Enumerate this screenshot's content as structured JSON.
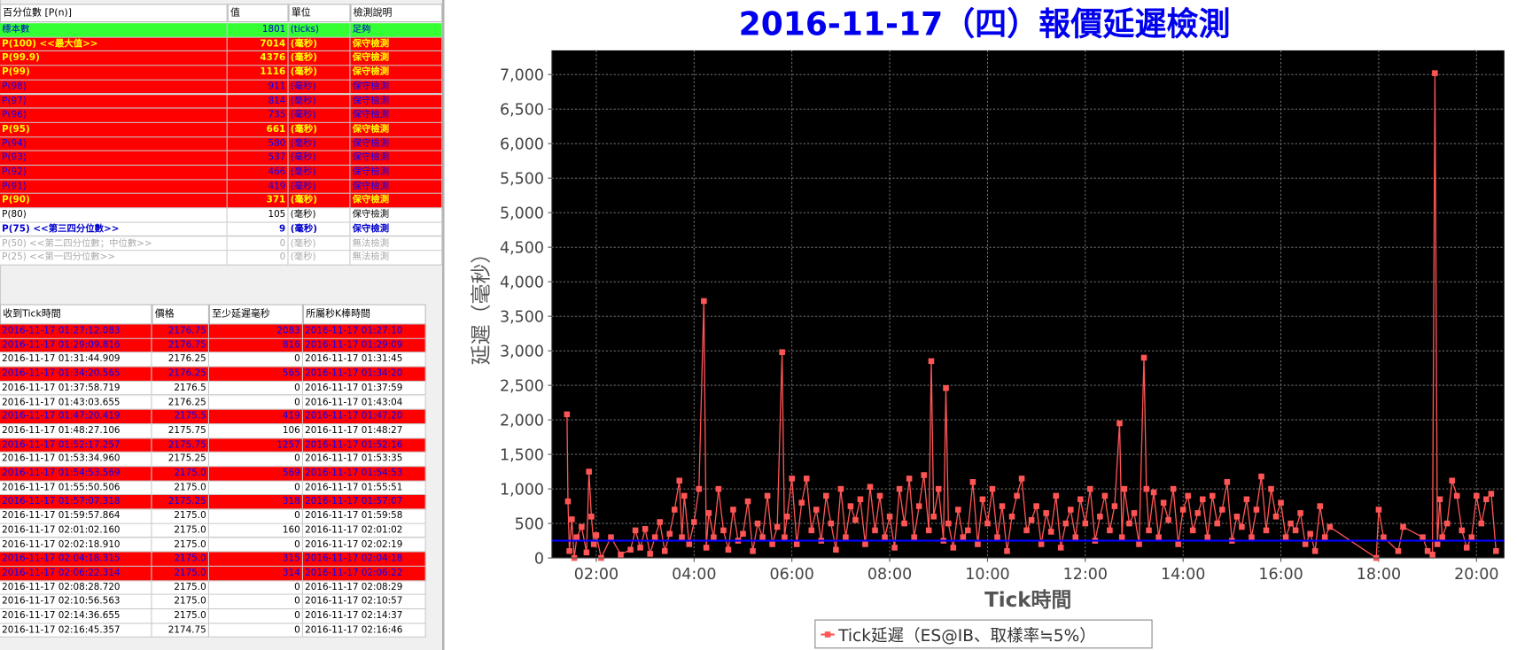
{
  "top_table": {
    "columns": [
      "百分位數 [P(n)]",
      "值",
      "單位",
      "檢測說明"
    ],
    "rows": [
      {
        "cells": [
          "標本數",
          "1801",
          "(ticks)",
          "足夠"
        ],
        "bg": "#33ff33",
        "fg": "#0000cc",
        "bold": false
      },
      {
        "cells": [
          "P(100)  <<最大值>>",
          "7014",
          "(毫秒)",
          "保守檢測"
        ],
        "bg": "#ff0000",
        "fg": "#ffff00",
        "bold": true
      },
      {
        "cells": [
          "P(99.9)",
          "4376",
          "(毫秒)",
          "保守檢測"
        ],
        "bg": "#ff0000",
        "fg": "#ffff00",
        "bold": true
      },
      {
        "cells": [
          "P(99)",
          "1116",
          "(毫秒)",
          "保守檢測"
        ],
        "bg": "#ff0000",
        "fg": "#ffff00",
        "bold": true
      },
      {
        "cells": [
          "P(98)",
          "911",
          "(毫秒)",
          "保守檢測"
        ],
        "bg": "#ff0000",
        "fg": "#0000ff",
        "bold": false
      },
      {
        "cells": [
          "P(97)",
          "814",
          "(毫秒)",
          "保守檢測"
        ],
        "bg": "#ff0000",
        "fg": "#0000ff",
        "bold": false
      },
      {
        "cells": [
          "P(96)",
          "735",
          "(毫秒)",
          "保守檢測"
        ],
        "bg": "#ff0000",
        "fg": "#0000ff",
        "bold": false
      },
      {
        "cells": [
          "P(95)",
          "661",
          "(毫秒)",
          "保守檢測"
        ],
        "bg": "#ff0000",
        "fg": "#ffff00",
        "bold": true
      },
      {
        "cells": [
          "P(94)",
          "580",
          "(毫秒)",
          "保守檢測"
        ],
        "bg": "#ff0000",
        "fg": "#0000ff",
        "bold": false
      },
      {
        "cells": [
          "P(93)",
          "537",
          "(毫秒)",
          "保守檢測"
        ],
        "bg": "#ff0000",
        "fg": "#0000ff",
        "bold": false
      },
      {
        "cells": [
          "P(92)",
          "466",
          "(毫秒)",
          "保守檢測"
        ],
        "bg": "#ff0000",
        "fg": "#0000ff",
        "bold": false
      },
      {
        "cells": [
          "P(91)",
          "419",
          "(毫秒)",
          "保守檢測"
        ],
        "bg": "#ff0000",
        "fg": "#0000ff",
        "bold": false
      },
      {
        "cells": [
          "P(90)",
          "371",
          "(毫秒)",
          "保守檢測"
        ],
        "bg": "#ff0000",
        "fg": "#ffff00",
        "bold": true
      },
      {
        "cells": [
          "P(80)",
          "105",
          "(毫秒)",
          "保守檢測"
        ],
        "bg": "#ffffff",
        "fg": "#000000",
        "bold": false
      },
      {
        "cells": [
          "P(75)  <<第三四分位數>>",
          "9",
          "(毫秒)",
          "保守檢測"
        ],
        "bg": "#ffffff",
        "fg": "#0000cc",
        "bold": true
      },
      {
        "cells": [
          "P(50)  <<第二四分位數；中位數>>",
          "0",
          "(毫秒)",
          "無法檢測"
        ],
        "bg": "#ffffff",
        "fg": "#aaaaaa",
        "bold": false
      },
      {
        "cells": [
          "P(25)  <<第一四分位數>>",
          "0",
          "(毫秒)",
          "無法檢測"
        ],
        "bg": "#ffffff",
        "fg": "#aaaaaa",
        "bold": false
      }
    ]
  },
  "bottom_table": {
    "columns": [
      "收到Tick時間",
      "價格",
      "至少延遲毫秒",
      "所屬秒K棒時間"
    ],
    "rows": [
      {
        "cells": [
          "2016-11-17 01:27:12.083",
          "2176.75",
          "2083",
          "2016-11-17 01:27:10"
        ],
        "bg": "#ff0000",
        "fg": "#0000ff"
      },
      {
        "cells": [
          "2016-11-17 01:29:09.816",
          "2176.75",
          "816",
          "2016-11-17 01:29:09"
        ],
        "bg": "#ff0000",
        "fg": "#0000ff"
      },
      {
        "cells": [
          "2016-11-17 01:31:44.909",
          "2176.25",
          "0",
          "2016-11-17 01:31:45"
        ],
        "bg": "#ffffff",
        "fg": "#000000"
      },
      {
        "cells": [
          "2016-11-17 01:34:20.565",
          "2176.25",
          "565",
          "2016-11-17 01:34:20"
        ],
        "bg": "#ff0000",
        "fg": "#0000ff"
      },
      {
        "cells": [
          "2016-11-17 01:37:58.719",
          "2176.5",
          "0",
          "2016-11-17 01:37:59"
        ],
        "bg": "#ffffff",
        "fg": "#000000"
      },
      {
        "cells": [
          "2016-11-17 01:43:03.655",
          "2176.25",
          "0",
          "2016-11-17 01:43:04"
        ],
        "bg": "#ffffff",
        "fg": "#000000"
      },
      {
        "cells": [
          "2016-11-17 01:47:20.419",
          "2175.5",
          "419",
          "2016-11-17 01:47:20"
        ],
        "bg": "#ff0000",
        "fg": "#0000ff"
      },
      {
        "cells": [
          "2016-11-17 01:48:27.106",
          "2175.75",
          "106",
          "2016-11-17 01:48:27"
        ],
        "bg": "#ffffff",
        "fg": "#000000"
      },
      {
        "cells": [
          "2016-11-17 01:52:17.257",
          "2175.75",
          "1257",
          "2016-11-17 01:52:16"
        ],
        "bg": "#ff0000",
        "fg": "#0000ff"
      },
      {
        "cells": [
          "2016-11-17 01:53:34.960",
          "2175.25",
          "0",
          "2016-11-17 01:53:35"
        ],
        "bg": "#ffffff",
        "fg": "#000000"
      },
      {
        "cells": [
          "2016-11-17 01:54:53.569",
          "2175.0",
          "569",
          "2016-11-17 01:54:53"
        ],
        "bg": "#ff0000",
        "fg": "#0000ff"
      },
      {
        "cells": [
          "2016-11-17 01:55:50.506",
          "2175.0",
          "0",
          "2016-11-17 01:55:51"
        ],
        "bg": "#ffffff",
        "fg": "#000000"
      },
      {
        "cells": [
          "2016-11-17 01:57:07.318",
          "2175.25",
          "318",
          "2016-11-17 01:57:07"
        ],
        "bg": "#ff0000",
        "fg": "#0000ff"
      },
      {
        "cells": [
          "2016-11-17 01:59:57.864",
          "2175.0",
          "0",
          "2016-11-17 01:59:58"
        ],
        "bg": "#ffffff",
        "fg": "#000000"
      },
      {
        "cells": [
          "2016-11-17 02:01:02.160",
          "2175.0",
          "160",
          "2016-11-17 02:01:02"
        ],
        "bg": "#ffffff",
        "fg": "#000000"
      },
      {
        "cells": [
          "2016-11-17 02:02:18.910",
          "2175.0",
          "0",
          "2016-11-17 02:02:19"
        ],
        "bg": "#ffffff",
        "fg": "#000000"
      },
      {
        "cells": [
          "2016-11-17 02:04:18.315",
          "2175.0",
          "315",
          "2016-11-17 02:04:18"
        ],
        "bg": "#ff0000",
        "fg": "#0000ff"
      },
      {
        "cells": [
          "2016-11-17 02:06:22.314",
          "2175.0",
          "314",
          "2016-11-17 02:06:22"
        ],
        "bg": "#ff0000",
        "fg": "#0000ff"
      },
      {
        "cells": [
          "2016-11-17 02:08:28.720",
          "2175.0",
          "0",
          "2016-11-17 02:08:29"
        ],
        "bg": "#ffffff",
        "fg": "#000000"
      },
      {
        "cells": [
          "2016-11-17 02:10:56.563",
          "2175.0",
          "0",
          "2016-11-17 02:10:57"
        ],
        "bg": "#ffffff",
        "fg": "#000000"
      },
      {
        "cells": [
          "2016-11-17 02:14:36.655",
          "2175.0",
          "0",
          "2016-11-17 02:14:37"
        ],
        "bg": "#ffffff",
        "fg": "#000000"
      },
      {
        "cells": [
          "2016-11-17 02:16:45.357",
          "2174.75",
          "0",
          "2016-11-17 02:16:46"
        ],
        "bg": "#ffffff",
        "fg": "#000000"
      }
    ]
  },
  "chart_data": {
    "type": "line",
    "title": "2016-11-17（四）報價延遲檢測",
    "x_label": "Tick時間",
    "y_label": "延遲（毫秒）",
    "background": "#000000",
    "grid": true,
    "xlim": [
      1.09,
      20.57
    ],
    "xticks": [
      {
        "value": 2,
        "label": "02:00"
      },
      {
        "value": 4,
        "label": "04:00"
      },
      {
        "value": 6,
        "label": "06:00"
      },
      {
        "value": 8,
        "label": "08:00"
      },
      {
        "value": 10,
        "label": "10:00"
      },
      {
        "value": 12,
        "label": "12:00"
      },
      {
        "value": 14,
        "label": "14:00"
      },
      {
        "value": 16,
        "label": "16:00"
      },
      {
        "value": 18,
        "label": "18:00"
      },
      {
        "value": 20,
        "label": "20:00"
      }
    ],
    "ylim": [
      0,
      7350
    ],
    "yticks": [
      0,
      500,
      {
        "value": 1000,
        "label": "1,000"
      },
      {
        "value": 1500,
        "label": "1,500"
      },
      {
        "value": 2000,
        "label": "2,000"
      },
      {
        "value": 2500,
        "label": "2,500"
      },
      {
        "value": 3000,
        "label": "3,000"
      },
      {
        "value": 3500,
        "label": "3,500"
      },
      {
        "value": 4000,
        "label": "4,000"
      },
      {
        "value": 4500,
        "label": "4,500"
      },
      {
        "value": 5000,
        "label": "5,000"
      },
      {
        "value": 5500,
        "label": "5,500"
      },
      {
        "value": 6000,
        "label": "6,000"
      },
      {
        "value": 6500,
        "label": "6,500"
      },
      {
        "value": 7000,
        "label": "7,000"
      }
    ],
    "reference_line": {
      "value": 250,
      "color": "#0000ff"
    },
    "legend": "bottom",
    "x": [
      1.4,
      1.42,
      1.45,
      1.5,
      1.55,
      1.6,
      1.7,
      1.8,
      1.85,
      1.9,
      1.95,
      2.0,
      2.1,
      2.3,
      2.5,
      2.7,
      2.8,
      2.9,
      3.0,
      3.1,
      3.2,
      3.3,
      3.4,
      3.5,
      3.6,
      3.7,
      3.75,
      3.8,
      3.9,
      4.0,
      4.1,
      4.2,
      4.25,
      4.3,
      4.4,
      4.5,
      4.6,
      4.7,
      4.8,
      4.9,
      5.0,
      5.1,
      5.2,
      5.3,
      5.4,
      5.5,
      5.6,
      5.7,
      5.8,
      5.85,
      5.9,
      6.0,
      6.1,
      6.2,
      6.3,
      6.4,
      6.5,
      6.6,
      6.7,
      6.8,
      6.9,
      7.0,
      7.1,
      7.2,
      7.3,
      7.4,
      7.5,
      7.6,
      7.7,
      7.8,
      7.9,
      8.0,
      8.1,
      8.2,
      8.3,
      8.4,
      8.5,
      8.6,
      8.7,
      8.8,
      8.85,
      8.9,
      9.0,
      9.1,
      9.15,
      9.2,
      9.3,
      9.4,
      9.5,
      9.6,
      9.7,
      9.8,
      9.9,
      10.0,
      10.1,
      10.2,
      10.3,
      10.4,
      10.5,
      10.6,
      10.7,
      10.8,
      10.9,
      11.0,
      11.1,
      11.2,
      11.3,
      11.4,
      11.5,
      11.6,
      11.7,
      11.8,
      11.9,
      12.0,
      12.1,
      12.2,
      12.3,
      12.4,
      12.5,
      12.6,
      12.7,
      12.75,
      12.8,
      12.9,
      13.0,
      13.1,
      13.2,
      13.25,
      13.3,
      13.4,
      13.5,
      13.6,
      13.7,
      13.8,
      13.9,
      14.0,
      14.1,
      14.2,
      14.3,
      14.4,
      14.5,
      14.6,
      14.7,
      14.8,
      14.9,
      15.0,
      15.1,
      15.2,
      15.3,
      15.4,
      15.5,
      15.6,
      15.7,
      15.8,
      15.9,
      16.0,
      16.1,
      16.2,
      16.3,
      16.4,
      16.5,
      16.6,
      16.7,
      16.8,
      16.9,
      17.0,
      17.95,
      18.0,
      18.1,
      18.4,
      18.5,
      18.9,
      19.0,
      19.1,
      19.15,
      19.2,
      19.25,
      19.3,
      19.4,
      19.5,
      19.6,
      19.7,
      19.8,
      19.9,
      20.0,
      20.1,
      20.2,
      20.3,
      20.4
    ],
    "series": [
      {
        "name": "Tick延遲（ES@IB、取樣率≒5%）",
        "color": "#ff5555",
        "values": [
          2080,
          820,
          100,
          560,
          0,
          300,
          450,
          80,
          1250,
          600,
          200,
          330,
          0,
          300,
          50,
          120,
          400,
          150,
          420,
          60,
          300,
          520,
          100,
          350,
          700,
          1120,
          300,
          900,
          200,
          520,
          1000,
          3720,
          150,
          650,
          300,
          1000,
          400,
          120,
          700,
          250,
          350,
          820,
          100,
          500,
          300,
          900,
          200,
          450,
          2980,
          300,
          600,
          1150,
          200,
          800,
          1150,
          400,
          700,
          250,
          900,
          500,
          120,
          1000,
          300,
          750,
          550,
          850,
          200,
          1030,
          400,
          900,
          300,
          600,
          150,
          1000,
          500,
          1150,
          300,
          750,
          1200,
          400,
          2850,
          600,
          1000,
          250,
          2460,
          500,
          150,
          700,
          300,
          400,
          1100,
          200,
          850,
          500,
          1000,
          300,
          750,
          100,
          600,
          900,
          1150,
          400,
          550,
          750,
          200,
          650,
          380,
          900,
          150,
          500,
          700,
          300,
          850,
          500,
          1000,
          250,
          600,
          900,
          400,
          750,
          1950,
          300,
          1000,
          500,
          650,
          200,
          2900,
          1000,
          400,
          950,
          300,
          800,
          550,
          1000,
          200,
          700,
          900,
          400,
          650,
          850,
          300,
          900,
          500,
          700,
          1100,
          250,
          600,
          450,
          850,
          300,
          700,
          1180,
          400,
          1000,
          600,
          800,
          300,
          500,
          400,
          650,
          200,
          350,
          100,
          750,
          300,
          450,
          0,
          700,
          300,
          100,
          450,
          300,
          100,
          50,
          7020,
          200,
          850,
          300,
          500,
          1120,
          900,
          400,
          150,
          300,
          900,
          500,
          850,
          930,
          100
        ]
      }
    ]
  }
}
